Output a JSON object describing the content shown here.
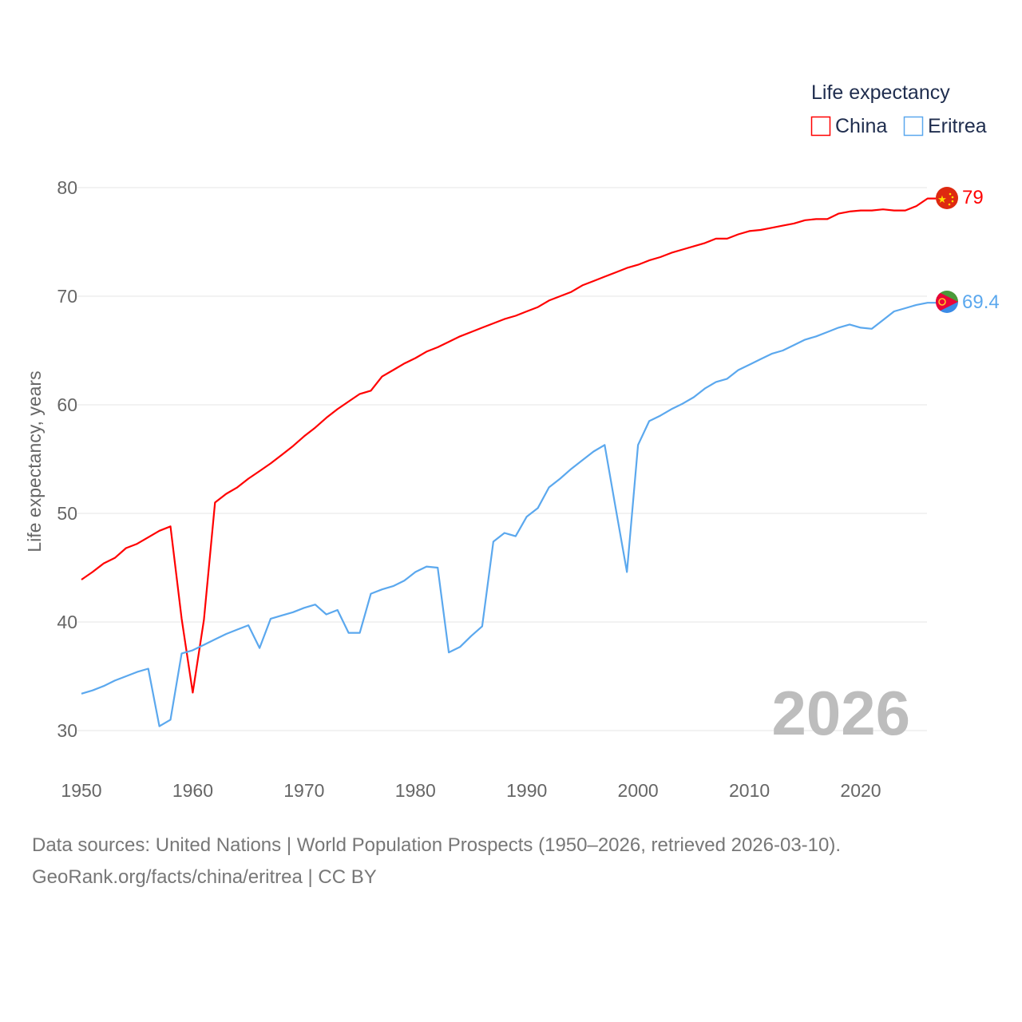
{
  "colors": {
    "china": "#ff0000",
    "eritrea": "#5ba8ee",
    "grid": "#e6e6e6",
    "watermark": "#bdbdbd"
  },
  "footer": {
    "line1": "Data sources: United Nations | World Population Prospects (1950–2026, retrieved 2026-03-10).",
    "line2": "GeoRank.org/facts/china/eritrea | CC BY"
  },
  "chart_data": {
    "type": "line",
    "title": "",
    "legend_title": "Life expectancy",
    "legend_position": "top-right",
    "ylabel": "Life expectancy, years",
    "xlabel": "",
    "xlim": [
      1950,
      2026
    ],
    "ylim": [
      30,
      80
    ],
    "xticks": [
      "1950",
      "1960",
      "1970",
      "1980",
      "1990",
      "2000",
      "2010",
      "2020"
    ],
    "yticks": [
      "30",
      "40",
      "50",
      "60",
      "70",
      "80"
    ],
    "grid": true,
    "watermark_year": "2026",
    "x_start": 1950,
    "series": [
      {
        "name": "China",
        "end_label": "79",
        "flag": "china-flag",
        "values": [
          43.9,
          44.6,
          45.4,
          45.9,
          46.8,
          47.2,
          47.8,
          48.4,
          48.8,
          40.3,
          33.5,
          40.2,
          51.0,
          51.8,
          52.4,
          53.2,
          53.9,
          54.6,
          55.4,
          56.2,
          57.1,
          57.9,
          58.8,
          59.6,
          60.3,
          61.0,
          61.3,
          62.6,
          63.2,
          63.8,
          64.3,
          64.9,
          65.3,
          65.8,
          66.3,
          66.7,
          67.1,
          67.5,
          67.9,
          68.2,
          68.6,
          69.0,
          69.6,
          70.0,
          70.4,
          71.0,
          71.4,
          71.8,
          72.2,
          72.6,
          72.9,
          73.3,
          73.6,
          74.0,
          74.3,
          74.6,
          74.9,
          75.3,
          75.3,
          75.7,
          76.0,
          76.1,
          76.3,
          76.5,
          76.7,
          77.0,
          77.1,
          77.1,
          77.6,
          77.8,
          77.9,
          77.9,
          78.0,
          77.9,
          77.9,
          78.3,
          79.0
        ]
      },
      {
        "name": "Eritrea",
        "end_label": "69.4",
        "flag": "eritrea-flag",
        "values": [
          33.4,
          33.7,
          34.1,
          34.6,
          35.0,
          35.4,
          35.7,
          30.4,
          31.0,
          37.1,
          37.4,
          37.9,
          38.4,
          38.9,
          39.3,
          39.7,
          37.6,
          40.3,
          40.6,
          40.9,
          41.3,
          41.6,
          40.7,
          41.1,
          39.0,
          39.0,
          42.6,
          43.0,
          43.3,
          43.8,
          44.6,
          45.1,
          45.0,
          37.2,
          37.7,
          38.7,
          39.6,
          47.4,
          48.2,
          47.9,
          49.7,
          50.5,
          52.4,
          53.2,
          54.1,
          54.9,
          55.7,
          56.3,
          50.4,
          44.6,
          56.3,
          58.5,
          59.0,
          59.6,
          60.1,
          60.7,
          61.5,
          62.1,
          62.4,
          63.2,
          63.7,
          64.2,
          64.7,
          65.0,
          65.5,
          66.0,
          66.3,
          66.7,
          67.1,
          67.4,
          67.1,
          67.0,
          67.8,
          68.6,
          68.9,
          69.2,
          69.4
        ]
      }
    ]
  }
}
